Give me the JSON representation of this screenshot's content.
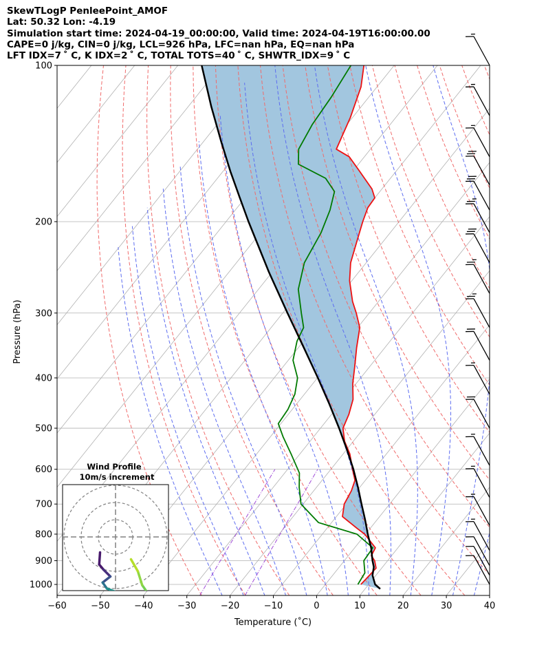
{
  "header": {
    "line1": "SkewTLogP PenleePoint_AMOF",
    "line2": "Lat: 50.32   Lon: -4.19",
    "line3": "Simulation start time: 2024-04-19_00:00:00, Valid time: 2024-04-19T16:00:00.00",
    "line4": "CAPE=0 j/kg, CIN=0 j/kg, LCL=926 hPa, LFC=nan hPa, EQ=nan hPa",
    "line5": "LFT IDX=7 ˚ C, K IDX=2 ˚ C, TOTAL TOTS=40 ˚ C, SHWTR_IDX=9 ˚ C"
  },
  "chart_data": {
    "type": "line",
    "subtype": "skew-T log-P diagram",
    "xlabel": "Temperature ($^{\\circ}$C)",
    "xlabel_display": "Temperature (˚C)",
    "ylabel": "Pressure (hPa)",
    "x_ticks": [
      "−60",
      "−50",
      "−40",
      "−30",
      "−20",
      "−10",
      "0",
      "10",
      "20",
      "30",
      "40"
    ],
    "x_tick_values": [
      -60,
      -50,
      -40,
      -30,
      -20,
      -10,
      0,
      10,
      20,
      30,
      40
    ],
    "y_ticks": [
      "100",
      "200",
      "300",
      "400",
      "500",
      "600",
      "700",
      "800",
      "900",
      "1000"
    ],
    "y_tick_values": [
      100,
      200,
      300,
      400,
      500,
      600,
      700,
      800,
      900,
      1000
    ],
    "xlim": [
      -60,
      40
    ],
    "ylim": [
      1050,
      100
    ],
    "y_scale": "log",
    "grid": true,
    "colors": {
      "temperature": "#ee1111",
      "dewpoint": "#007a00",
      "parcel": "#000000",
      "shade": "#a2c6df",
      "dry_adiabats": "#f06a6a",
      "moist_adiabats": "#5c6cf0",
      "mixing_ratio": "#a04bd8",
      "isotherm_grid": "#b0b0b0"
    },
    "series": [
      {
        "points": [
          {
            "p": 1000,
            "t": 8.2
          },
          {
            "p": 960,
            "t": 8.5
          },
          {
            "p": 930,
            "t": 8.7
          },
          {
            "p": 900,
            "t": 7.0
          },
          {
            "p": 880,
            "t": 5.3
          },
          {
            "p": 850,
            "t": 4.8
          },
          {
            "p": 800,
            "t": -0.2
          },
          {
            "p": 780,
            "t": -3.0
          },
          {
            "p": 740,
            "t": -8.6
          },
          {
            "p": 700,
            "t": -10.5
          },
          {
            "p": 660,
            "t": -11.3
          },
          {
            "p": 630,
            "t": -12.4
          },
          {
            "p": 600,
            "t": -15.0
          },
          {
            "p": 560,
            "t": -18.5
          },
          {
            "p": 530,
            "t": -22.0
          },
          {
            "p": 500,
            "t": -24.8
          },
          {
            "p": 470,
            "t": -26.0
          },
          {
            "p": 440,
            "t": -27.8
          },
          {
            "p": 410,
            "t": -30.8
          },
          {
            "p": 380,
            "t": -33.5
          },
          {
            "p": 350,
            "t": -36.5
          },
          {
            "p": 320,
            "t": -39.5
          },
          {
            "p": 300,
            "t": -43.0
          },
          {
            "p": 285,
            "t": -46.0
          },
          {
            "p": 260,
            "t": -50.5
          },
          {
            "p": 240,
            "t": -53.6
          },
          {
            "p": 220,
            "t": -55.9
          },
          {
            "p": 200,
            "t": -58.4
          },
          {
            "p": 188,
            "t": -59.8
          },
          {
            "p": 180,
            "t": -60.0
          },
          {
            "p": 173,
            "t": -62.3
          },
          {
            "p": 160,
            "t": -68.4
          },
          {
            "p": 150,
            "t": -73.5
          },
          {
            "p": 145,
            "t": -77.9
          },
          {
            "p": 126,
            "t": -80.5
          },
          {
            "p": 110,
            "t": -83.7
          },
          {
            "p": 100,
            "t": -87.0
          }
        ]
      },
      {
        "points": [
          {
            "p": 1000,
            "t": 7.5
          },
          {
            "p": 950,
            "t": 7.0
          },
          {
            "p": 900,
            "t": 4.5
          },
          {
            "p": 850,
            "t": 4.2
          },
          {
            "p": 800,
            "t": -2.0
          },
          {
            "p": 760,
            "t": -13.0
          },
          {
            "p": 700,
            "t": -20.5
          },
          {
            "p": 650,
            "t": -24.0
          },
          {
            "p": 610,
            "t": -26.6
          },
          {
            "p": 560,
            "t": -32.1
          },
          {
            "p": 520,
            "t": -37.0
          },
          {
            "p": 490,
            "t": -40.6
          },
          {
            "p": 460,
            "t": -41.0
          },
          {
            "p": 430,
            "t": -42.2
          },
          {
            "p": 400,
            "t": -44.6
          },
          {
            "p": 370,
            "t": -48.9
          },
          {
            "p": 340,
            "t": -51.5
          },
          {
            "p": 320,
            "t": -52.5
          },
          {
            "p": 300,
            "t": -55.7
          },
          {
            "p": 270,
            "t": -60.8
          },
          {
            "p": 240,
            "t": -64.3
          },
          {
            "p": 210,
            "t": -66.0
          },
          {
            "p": 190,
            "t": -68.1
          },
          {
            "p": 175,
            "t": -70.5
          },
          {
            "p": 165,
            "t": -75.0
          },
          {
            "p": 155,
            "t": -83.9
          },
          {
            "p": 145,
            "t": -86.6
          },
          {
            "p": 130,
            "t": -88.0
          },
          {
            "p": 115,
            "t": -88.7
          },
          {
            "p": 100,
            "t": -90.0
          }
        ]
      },
      {
        "points": [
          {
            "p": 1020,
            "t": 13.5
          },
          {
            "p": 1000,
            "t": 11.5
          },
          {
            "p": 960,
            "t": 9.2
          },
          {
            "p": 926,
            "t": 8.0
          },
          {
            "p": 900,
            "t": 6.5
          },
          {
            "p": 850,
            "t": 3.8
          },
          {
            "p": 800,
            "t": 0.5
          },
          {
            "p": 750,
            "t": -2.8
          },
          {
            "p": 700,
            "t": -6.5
          },
          {
            "p": 650,
            "t": -10.4
          },
          {
            "p": 600,
            "t": -14.8
          },
          {
            "p": 550,
            "t": -19.9
          },
          {
            "p": 500,
            "t": -25.7
          },
          {
            "p": 450,
            "t": -32.3
          },
          {
            "p": 400,
            "t": -39.9
          },
          {
            "p": 350,
            "t": -48.7
          },
          {
            "p": 300,
            "t": -58.9
          },
          {
            "p": 250,
            "t": -70.8
          },
          {
            "p": 200,
            "t": -84.8
          },
          {
            "p": 180,
            "t": -91.2
          },
          {
            "p": 160,
            "t": -98.3
          },
          {
            "p": 140,
            "t": -106.0
          },
          {
            "p": 120,
            "t": -114.7
          },
          {
            "p": 100,
            "t": -124.5
          }
        ]
      }
    ],
    "wind_barbs": [
      {
        "p": 100,
        "flags": 0,
        "full": 1,
        "half": 1
      },
      {
        "p": 125,
        "flags": 0,
        "full": 1,
        "half": 1
      },
      {
        "p": 150,
        "flags": 0,
        "full": 1,
        "half": 1
      },
      {
        "p": 170,
        "flags": 0,
        "full": 3,
        "half": 0
      },
      {
        "p": 190,
        "flags": 0,
        "full": 3,
        "half": 0
      },
      {
        "p": 210,
        "flags": 0,
        "full": 2,
        "half": 1
      },
      {
        "p": 240,
        "flags": 0,
        "full": 3,
        "half": 0
      },
      {
        "p": 275,
        "flags": 0,
        "full": 2,
        "half": 1
      },
      {
        "p": 320,
        "flags": 0,
        "full": 2,
        "half": 1
      },
      {
        "p": 370,
        "flags": 0,
        "full": 2,
        "half": 0
      },
      {
        "p": 430,
        "flags": 0,
        "full": 1,
        "half": 1
      },
      {
        "p": 500,
        "flags": 0,
        "full": 2,
        "half": 0
      },
      {
        "p": 590,
        "flags": 0,
        "full": 1,
        "half": 1
      },
      {
        "p": 680,
        "flags": 0,
        "full": 1,
        "half": 1
      },
      {
        "p": 770,
        "flags": 0,
        "full": 1,
        "half": 1
      },
      {
        "p": 860,
        "flags": 0,
        "full": 1,
        "half": 1
      },
      {
        "p": 920,
        "flags": 0,
        "full": 1,
        "half": 0
      },
      {
        "p": 960,
        "flags": 0,
        "full": 1,
        "half": 0
      },
      {
        "p": 1000,
        "flags": 0,
        "full": 1,
        "half": 0
      }
    ],
    "inset": {
      "title_line1": "Wind Profile",
      "title_line2": "10m/s increment",
      "rings": 3,
      "hodograph": [
        {
          "u": -0.9,
          "v": -0.9,
          "color": "#481a6c"
        },
        {
          "u": -0.95,
          "v": -1.6,
          "color": "#481a6c"
        },
        {
          "u": -0.7,
          "v": -1.9,
          "color": "#472f7d"
        },
        {
          "u": -0.3,
          "v": -2.3,
          "color": "#3b518b"
        },
        {
          "u": -0.75,
          "v": -2.65,
          "color": "#2c728e"
        },
        {
          "u": -0.5,
          "v": -3.0,
          "color": "#21918c"
        },
        {
          "u": 0.3,
          "v": -3.3,
          "color": "#28ae80"
        },
        {
          "u": 1.7,
          "v": -3.45,
          "color": "#3fbc73"
        },
        {
          "u": 1.9,
          "v": -3.3,
          "color": "#75d054"
        },
        {
          "u": 1.55,
          "v": -2.8,
          "color": "#8fd744"
        },
        {
          "u": 1.3,
          "v": -2.0,
          "color": "#b5de2b"
        },
        {
          "u": 0.9,
          "v": -1.3,
          "color": "#d8e219"
        }
      ]
    }
  }
}
